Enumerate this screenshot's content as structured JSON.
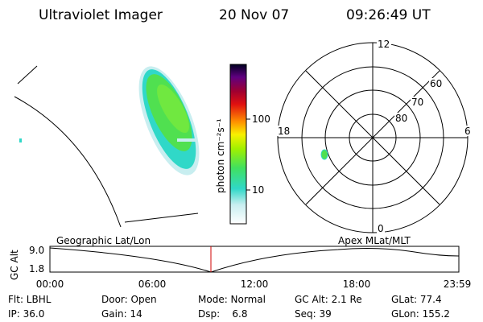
{
  "header": {
    "instrument": "Ultraviolet Imager",
    "date": "20 Nov 07",
    "time": "09:26:49 UT"
  },
  "colorbar": {
    "label": "photon cm⁻²s⁻¹",
    "ticks": [
      "100",
      "10"
    ]
  },
  "polar": {
    "rings": [
      "60",
      "70",
      "80"
    ],
    "hours": [
      "12",
      "18",
      "6",
      "0"
    ]
  },
  "timeline": {
    "left_title": "Geographic Lat/Lon",
    "right_title": "Apex MLat/MLT",
    "y_label": "GC Alt",
    "y_ticks": [
      "9.0",
      "1.8"
    ],
    "x_ticks": [
      "00:00",
      "06:00",
      "12:00",
      "18:00",
      "23:59"
    ]
  },
  "info": {
    "rows": [
      [
        "Flt: LBHL",
        "Door: Open",
        "Mode: Normal",
        "GC Alt: 2.1 Re",
        "GLat: 77.4"
      ],
      [
        "IP: 36.0",
        "Gain: 14",
        "Dsp:    6.8",
        "Seq: 39",
        "GLon: 155.2"
      ]
    ]
  }
}
